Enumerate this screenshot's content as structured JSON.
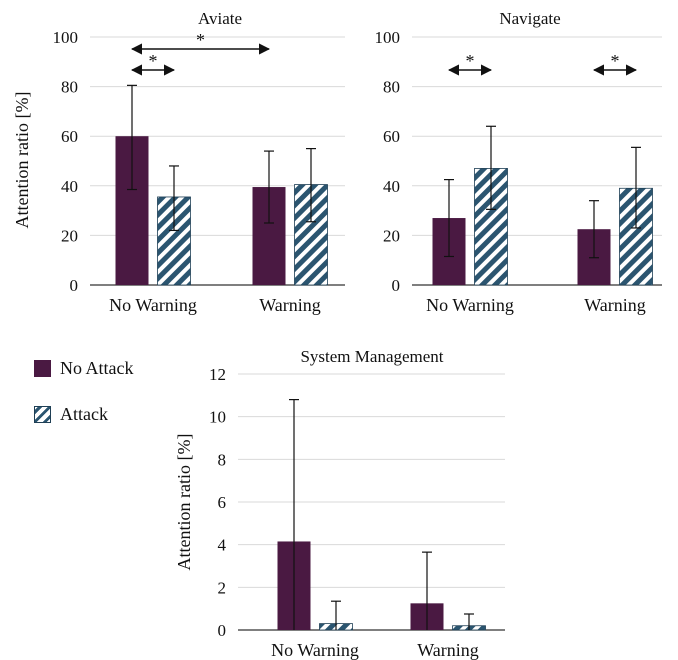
{
  "colors": {
    "no_attack": "#4a1942",
    "attack_stripe": "#2b5570",
    "grid": "#d9d9d9",
    "axis": "#333333"
  },
  "legend": {
    "no_attack_label": "No Attack",
    "attack_label": "Attack"
  },
  "chart_data": [
    {
      "type": "bar",
      "title": "Aviate",
      "ylabel": "Attention ratio [%]",
      "ylim": [
        0,
        100
      ],
      "yticks": [
        0,
        20,
        40,
        60,
        80,
        100
      ],
      "categories": [
        "No Warning",
        "Warning"
      ],
      "series": [
        {
          "name": "No Attack",
          "values": [
            60,
            39.5
          ],
          "err_low": [
            38.5,
            25
          ],
          "err_high": [
            80.5,
            54
          ]
        },
        {
          "name": "Attack",
          "values": [
            35.5,
            40.5
          ],
          "err_low": [
            22,
            25.5
          ],
          "err_high": [
            48,
            55
          ]
        }
      ],
      "significance": [
        {
          "from": "No Warning/No Attack",
          "to": "Warning/No Attack",
          "label": "*"
        },
        {
          "from": "No Warning/No Attack",
          "to": "No Warning/Attack",
          "label": "*"
        }
      ],
      "grid": true
    },
    {
      "type": "bar",
      "title": "Navigate",
      "ylabel": "",
      "ylim": [
        0,
        100
      ],
      "yticks": [
        0,
        20,
        40,
        60,
        80,
        100
      ],
      "categories": [
        "No Warning",
        "Warning"
      ],
      "series": [
        {
          "name": "No Attack",
          "values": [
            27,
            22.5
          ],
          "err_low": [
            11.5,
            11
          ],
          "err_high": [
            42.5,
            34
          ]
        },
        {
          "name": "Attack",
          "values": [
            47,
            39
          ],
          "err_low": [
            30.5,
            23
          ],
          "err_high": [
            64,
            55.5
          ]
        }
      ],
      "significance": [
        {
          "from": "No Warning/No Attack",
          "to": "No Warning/Attack",
          "label": "*"
        },
        {
          "from": "Warning/No Attack",
          "to": "Warning/Attack",
          "label": "*"
        }
      ],
      "grid": true
    },
    {
      "type": "bar",
      "title": "System Management",
      "ylabel": "Attention ratio [%]",
      "ylim": [
        0,
        12
      ],
      "yticks": [
        0,
        2,
        4,
        6,
        8,
        10,
        12
      ],
      "categories": [
        "No Warning",
        "Warning"
      ],
      "series": [
        {
          "name": "No Attack",
          "values": [
            4.15,
            1.25
          ],
          "err_low": [
            0,
            0
          ],
          "err_high": [
            10.8,
            3.65
          ]
        },
        {
          "name": "Attack",
          "values": [
            0.3,
            0.2
          ],
          "err_low": [
            0,
            0
          ],
          "err_high": [
            1.35,
            0.75
          ]
        }
      ],
      "significance": [],
      "grid": true
    }
  ]
}
